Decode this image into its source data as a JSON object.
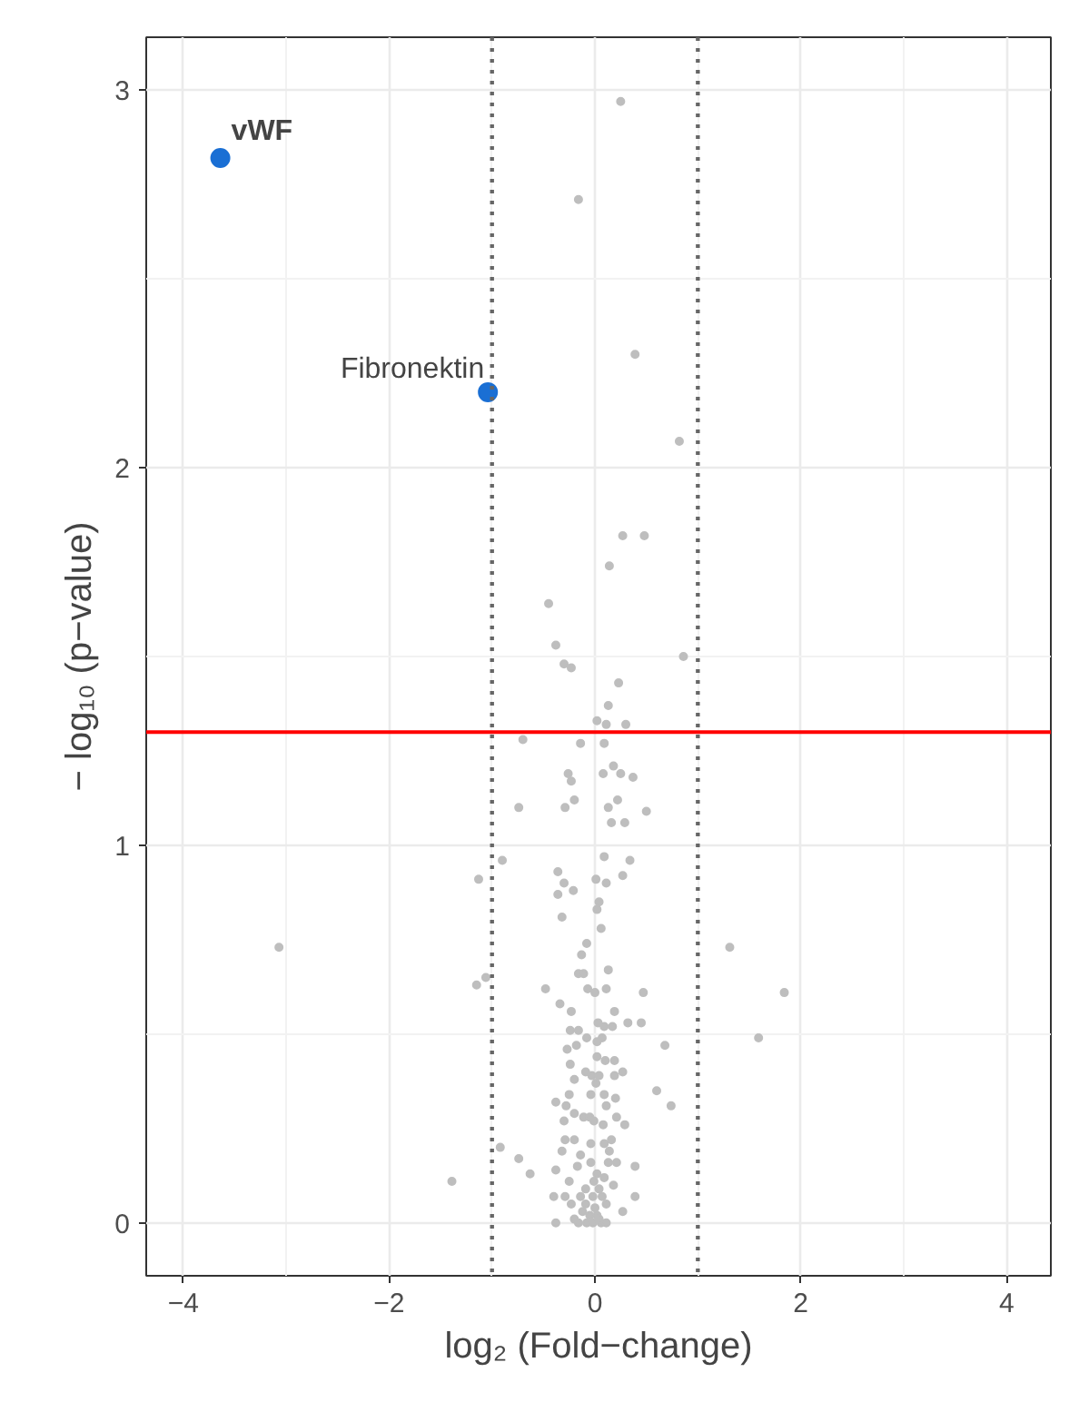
{
  "chart_data": {
    "type": "scatter",
    "xlabel": "log₂ (Fold−change)",
    "ylabel": "− log₁₀ (p−value)",
    "xlim": [
      -4.36,
      4.43
    ],
    "ylim": [
      -0.14,
      3.14
    ],
    "xticks": [
      -4,
      -2,
      0,
      2,
      4
    ],
    "yticks": [
      0,
      1,
      2,
      3
    ],
    "grid": true,
    "marker": "circle",
    "series": [
      {
        "color": "#bebebe",
        "x": [
          0.25,
          -0.16,
          0.39,
          0.82,
          0.27,
          0.48,
          0.14,
          -0.45,
          -0.38,
          -0.3,
          -0.23,
          0.23,
          0.86,
          0.13,
          0.02,
          0.11,
          0.3,
          -0.7,
          -0.14,
          0.09,
          -0.26,
          -0.23,
          0.08,
          0.18,
          0.25,
          0.37,
          -0.74,
          -0.29,
          -0.2,
          0.13,
          0.22,
          0.5,
          0.16,
          0.29,
          -0.9,
          -1.13,
          -0.36,
          -0.3,
          -0.21,
          -0.36,
          -0.32,
          0.01,
          0.09,
          0.34,
          0.27,
          0.11,
          0.04,
          0.02,
          0.06,
          -0.08,
          -0.13,
          -3.07,
          1.31,
          -0.16,
          -0.11,
          0.13,
          -1.15,
          -1.06,
          -0.48,
          -0.07,
          0.0,
          0.11,
          0.47,
          1.84,
          -0.34,
          -0.23,
          0.19,
          1.59,
          0.32,
          0.45,
          0.03,
          0.09,
          0.17,
          -0.24,
          -0.16,
          -0.08,
          0.07,
          0.02,
          0.68,
          -0.27,
          -0.18,
          -0.24,
          0.02,
          0.1,
          0.19,
          -0.09,
          -0.03,
          0.04,
          0.19,
          0.27,
          -0.2,
          0.01,
          0.6,
          0.74,
          -0.25,
          -0.04,
          0.09,
          0.2,
          -0.38,
          -0.28,
          0.11,
          -0.2,
          -0.11,
          -0.05,
          -0.01,
          0.08,
          0.21,
          0.29,
          -0.3,
          -0.92,
          -0.74,
          -0.63,
          -1.39,
          -0.29,
          -0.2,
          -0.04,
          0.09,
          0.16,
          -0.32,
          0.14,
          -0.14,
          -0.04,
          0.13,
          0.21,
          0.39,
          -0.17,
          -0.38,
          0.02,
          0.09,
          -0.25,
          -0.01,
          0.18,
          -0.09,
          0.04,
          -0.4,
          -0.29,
          -0.14,
          -0.02,
          0.07,
          0.39,
          -0.23,
          -0.09,
          0.0,
          0.11,
          0.27,
          -0.12,
          -0.05,
          0.02,
          -0.38,
          -0.2,
          -0.16,
          -0.08,
          -0.02,
          0.06,
          0.11,
          0.04
        ],
        "values": [
          2.97,
          2.71,
          2.3,
          2.07,
          1.82,
          1.82,
          1.74,
          1.64,
          1.53,
          1.48,
          1.47,
          1.43,
          1.5,
          1.37,
          1.33,
          1.32,
          1.32,
          1.28,
          1.27,
          1.27,
          1.19,
          1.17,
          1.19,
          1.21,
          1.19,
          1.18,
          1.1,
          1.1,
          1.12,
          1.1,
          1.12,
          1.09,
          1.06,
          1.06,
          0.96,
          0.91,
          0.93,
          0.9,
          0.88,
          0.87,
          0.81,
          0.91,
          0.97,
          0.96,
          0.92,
          0.9,
          0.85,
          0.83,
          0.78,
          0.74,
          0.71,
          0.73,
          0.73,
          0.66,
          0.66,
          0.67,
          0.63,
          0.65,
          0.62,
          0.62,
          0.61,
          0.62,
          0.61,
          0.61,
          0.58,
          0.56,
          0.56,
          0.49,
          0.53,
          0.53,
          0.53,
          0.52,
          0.52,
          0.51,
          0.51,
          0.49,
          0.49,
          0.48,
          0.47,
          0.46,
          0.47,
          0.42,
          0.44,
          0.43,
          0.43,
          0.4,
          0.39,
          0.39,
          0.39,
          0.4,
          0.38,
          0.37,
          0.35,
          0.31,
          0.34,
          0.34,
          0.34,
          0.33,
          0.32,
          0.31,
          0.31,
          0.29,
          0.28,
          0.28,
          0.27,
          0.26,
          0.28,
          0.26,
          0.27,
          0.2,
          0.17,
          0.13,
          0.11,
          0.22,
          0.22,
          0.21,
          0.21,
          0.22,
          0.19,
          0.19,
          0.18,
          0.16,
          0.16,
          0.16,
          0.15,
          0.15,
          0.14,
          0.13,
          0.12,
          0.11,
          0.11,
          0.1,
          0.09,
          0.09,
          0.07,
          0.07,
          0.07,
          0.07,
          0.07,
          0.07,
          0.05,
          0.05,
          0.04,
          0.05,
          0.03,
          0.03,
          0.02,
          0.02,
          0.0,
          0.01,
          0.0,
          0.0,
          0.0,
          0.0,
          0.0,
          0.01
        ]
      },
      {
        "color": "#1a6fd4",
        "x": [
          -3.64,
          -1.04
        ],
        "values": [
          2.82,
          2.2
        ]
      }
    ],
    "annotations": [
      {
        "text": "vWF",
        "x": -3.64,
        "y": 2.82
      },
      {
        "text": "Fibronektin",
        "x": -1.04,
        "y": 2.2
      }
    ],
    "ref_lines": [
      {
        "axis": "y",
        "value": 1.3,
        "color": "#ff0000",
        "line_style": "solid"
      },
      {
        "axis": "x",
        "value": -1,
        "color": "#666666",
        "line_style": "dotted"
      },
      {
        "axis": "x",
        "value": 1,
        "color": "#666666",
        "line_style": "dotted"
      }
    ]
  }
}
